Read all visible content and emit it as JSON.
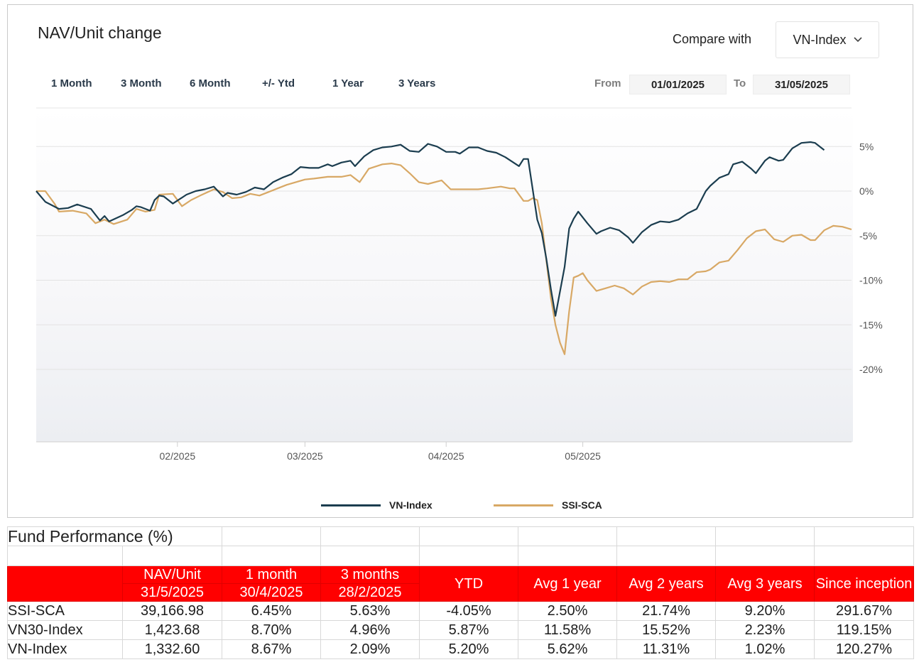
{
  "chart_header": {
    "title": "NAV/Unit change",
    "compare_label": "Compare with",
    "compare_value": "VN-Index",
    "periods": [
      "1 Month",
      "3 Month",
      "6 Month",
      "+/- Ytd",
      "1 Year",
      "3 Years"
    ],
    "from_label": "From",
    "from_value": "01/01/2025",
    "to_label": "To",
    "to_value": "31/05/2025",
    "chevron_icon": "chevron-down-icon"
  },
  "chart_data": {
    "type": "line",
    "x_start": "2025-01-01",
    "x_end": "2025-05-31",
    "x_tick_labels": [
      "02/2025",
      "03/2025",
      "04/2025",
      "05/2025"
    ],
    "y_tick_labels": [
      "5%",
      "0%",
      "-5%",
      "-10%",
      "-15%",
      "-20%"
    ],
    "y_ticks": [
      5,
      0,
      -5,
      -10,
      -15,
      -20
    ],
    "ylim": [
      -28,
      10
    ],
    "series": [
      {
        "name": "VN-Index",
        "color": "#1b3d4f",
        "points": [
          [
            "2025-01-01",
            0.0
          ],
          [
            "2025-01-03",
            -1.2
          ],
          [
            "2025-01-06",
            -2.0
          ],
          [
            "2025-01-08",
            -1.9
          ],
          [
            "2025-01-10",
            -1.5
          ],
          [
            "2025-01-13",
            -2.0
          ],
          [
            "2025-01-15",
            -3.3
          ],
          [
            "2025-01-16",
            -2.8
          ],
          [
            "2025-01-17",
            -3.4
          ],
          [
            "2025-01-20",
            -2.7
          ],
          [
            "2025-01-22",
            -2.1
          ],
          [
            "2025-01-23",
            -1.7
          ],
          [
            "2025-01-24",
            -1.8
          ],
          [
            "2025-01-26",
            -2.2
          ],
          [
            "2025-01-27",
            -1.0
          ],
          [
            "2025-01-28",
            -0.5
          ],
          [
            "2025-01-29",
            -0.6
          ],
          [
            "2025-01-31",
            -1.4
          ],
          [
            "2025-02-03",
            -0.4
          ],
          [
            "2025-02-05",
            0.0
          ],
          [
            "2025-02-07",
            0.2
          ],
          [
            "2025-02-09",
            0.5
          ],
          [
            "2025-02-11",
            -0.6
          ],
          [
            "2025-02-12",
            -0.2
          ],
          [
            "2025-02-14",
            -0.4
          ],
          [
            "2025-02-16",
            -0.1
          ],
          [
            "2025-02-18",
            0.4
          ],
          [
            "2025-02-20",
            0.2
          ],
          [
            "2025-02-22",
            1.0
          ],
          [
            "2025-02-24",
            1.5
          ],
          [
            "2025-02-26",
            1.9
          ],
          [
            "2025-02-28",
            2.7
          ],
          [
            "2025-03-02",
            2.6
          ],
          [
            "2025-03-04",
            2.6
          ],
          [
            "2025-03-06",
            3.0
          ],
          [
            "2025-03-07",
            2.8
          ],
          [
            "2025-03-09",
            3.2
          ],
          [
            "2025-03-11",
            3.4
          ],
          [
            "2025-03-12",
            2.8
          ],
          [
            "2025-03-14",
            3.9
          ],
          [
            "2025-03-16",
            4.6
          ],
          [
            "2025-03-18",
            4.9
          ],
          [
            "2025-03-20",
            5.0
          ],
          [
            "2025-03-22",
            5.2
          ],
          [
            "2025-03-24",
            4.5
          ],
          [
            "2025-03-26",
            4.4
          ],
          [
            "2025-03-28",
            5.3
          ],
          [
            "2025-03-30",
            5.0
          ],
          [
            "2025-04-01",
            4.4
          ],
          [
            "2025-04-03",
            4.4
          ],
          [
            "2025-04-04",
            4.2
          ],
          [
            "2025-04-06",
            4.9
          ],
          [
            "2025-04-08",
            4.9
          ],
          [
            "2025-04-10",
            4.5
          ],
          [
            "2025-04-12",
            4.3
          ],
          [
            "2025-04-14",
            3.8
          ],
          [
            "2025-04-17",
            2.8
          ],
          [
            "2025-04-18",
            3.6
          ],
          [
            "2025-04-19",
            3.6
          ],
          [
            "2025-04-21",
            -3.2
          ],
          [
            "2025-04-22",
            -4.7
          ],
          [
            "2025-04-23",
            -7.6
          ],
          [
            "2025-04-24",
            -11.0
          ],
          [
            "2025-04-25",
            -14.0
          ],
          [
            "2025-04-27",
            -8.5
          ],
          [
            "2025-04-28",
            -4.2
          ],
          [
            "2025-04-29",
            -3.1
          ],
          [
            "2025-04-30",
            -2.3
          ],
          [
            "2025-05-02",
            -3.6
          ],
          [
            "2025-05-04",
            -4.8
          ],
          [
            "2025-05-05",
            -4.5
          ],
          [
            "2025-05-07",
            -4.1
          ],
          [
            "2025-05-09",
            -4.4
          ],
          [
            "2025-05-11",
            -5.2
          ],
          [
            "2025-05-12",
            -5.8
          ],
          [
            "2025-05-14",
            -4.6
          ],
          [
            "2025-05-16",
            -3.8
          ],
          [
            "2025-05-18",
            -3.4
          ],
          [
            "2025-05-20",
            -3.5
          ],
          [
            "2025-05-22",
            -3.2
          ],
          [
            "2025-05-24",
            -2.5
          ],
          [
            "2025-05-26",
            -2.0
          ],
          [
            "2025-05-28",
            0.0
          ],
          [
            "2025-05-29",
            0.6
          ],
          [
            "2025-05-31",
            1.5
          ],
          [
            "2025-06-02",
            1.9
          ],
          [
            "2025-06-03",
            3.0
          ],
          [
            "2025-06-05",
            3.3
          ],
          [
            "2025-06-07",
            2.5
          ],
          [
            "2025-06-08",
            2.0
          ],
          [
            "2025-06-10",
            3.4
          ],
          [
            "2025-06-11",
            3.8
          ],
          [
            "2025-06-13",
            3.4
          ],
          [
            "2025-06-14",
            3.5
          ],
          [
            "2025-06-16",
            4.8
          ],
          [
            "2025-06-18",
            5.4
          ],
          [
            "2025-06-20",
            5.5
          ],
          [
            "2025-06-21",
            5.4
          ],
          [
            "2025-06-23",
            4.6
          ]
        ]
      },
      {
        "name": "SSI-SCA",
        "color": "#d8a865",
        "points": [
          [
            "2025-01-01",
            0.0
          ],
          [
            "2025-01-03",
            0.0
          ],
          [
            "2025-01-05",
            -1.4
          ],
          [
            "2025-01-06",
            -2.3
          ],
          [
            "2025-01-09",
            -2.2
          ],
          [
            "2025-01-12",
            -2.5
          ],
          [
            "2025-01-14",
            -3.6
          ],
          [
            "2025-01-16",
            -3.2
          ],
          [
            "2025-01-18",
            -3.7
          ],
          [
            "2025-01-21",
            -3.2
          ],
          [
            "2025-01-23",
            -2.0
          ],
          [
            "2025-01-25",
            -2.3
          ],
          [
            "2025-01-27",
            -2.1
          ],
          [
            "2025-01-28",
            -0.4
          ],
          [
            "2025-01-31",
            -0.3
          ],
          [
            "2025-02-02",
            -1.7
          ],
          [
            "2025-02-04",
            -1.0
          ],
          [
            "2025-02-06",
            -0.5
          ],
          [
            "2025-02-09",
            0.2
          ],
          [
            "2025-02-11",
            -0.1
          ],
          [
            "2025-02-13",
            -0.8
          ],
          [
            "2025-02-15",
            -0.7
          ],
          [
            "2025-02-17",
            -0.3
          ],
          [
            "2025-02-19",
            -0.5
          ],
          [
            "2025-02-21",
            -0.1
          ],
          [
            "2025-02-23",
            0.3
          ],
          [
            "2025-02-25",
            0.7
          ],
          [
            "2025-02-27",
            1.0
          ],
          [
            "2025-03-01",
            1.3
          ],
          [
            "2025-03-03",
            1.4
          ],
          [
            "2025-03-06",
            1.6
          ],
          [
            "2025-03-09",
            1.6
          ],
          [
            "2025-03-11",
            1.8
          ],
          [
            "2025-03-13",
            1.0
          ],
          [
            "2025-03-15",
            2.5
          ],
          [
            "2025-03-18",
            3.0
          ],
          [
            "2025-03-20",
            3.1
          ],
          [
            "2025-03-22",
            2.9
          ],
          [
            "2025-03-24",
            2.0
          ],
          [
            "2025-03-26",
            1.0
          ],
          [
            "2025-03-28",
            0.8
          ],
          [
            "2025-03-31",
            1.2
          ],
          [
            "2025-04-02",
            0.2
          ],
          [
            "2025-04-05",
            0.2
          ],
          [
            "2025-04-08",
            0.2
          ],
          [
            "2025-04-10",
            0.3
          ],
          [
            "2025-04-13",
            0.5
          ],
          [
            "2025-04-15",
            0.3
          ],
          [
            "2025-04-16",
            0.3
          ],
          [
            "2025-04-18",
            -1.1
          ],
          [
            "2025-04-19",
            -1.1
          ],
          [
            "2025-04-20",
            -0.8
          ],
          [
            "2025-04-21",
            -1.0
          ],
          [
            "2025-04-22",
            -3.6
          ],
          [
            "2025-04-23",
            -7.8
          ],
          [
            "2025-04-24",
            -12.0
          ],
          [
            "2025-04-25",
            -15.0
          ],
          [
            "2025-04-26",
            -17.0
          ],
          [
            "2025-04-27",
            -18.3
          ],
          [
            "2025-04-28",
            -13.5
          ],
          [
            "2025-04-29",
            -9.7
          ],
          [
            "2025-04-30",
            -9.5
          ],
          [
            "2025-05-01",
            -9.2
          ],
          [
            "2025-05-02",
            -10.0
          ],
          [
            "2025-05-04",
            -11.2
          ],
          [
            "2025-05-06",
            -10.9
          ],
          [
            "2025-05-08",
            -10.6
          ],
          [
            "2025-05-10",
            -10.9
          ],
          [
            "2025-05-12",
            -11.6
          ],
          [
            "2025-05-14",
            -10.7
          ],
          [
            "2025-05-16",
            -10.2
          ],
          [
            "2025-05-18",
            -10.1
          ],
          [
            "2025-05-20",
            -10.2
          ],
          [
            "2025-05-22",
            -9.9
          ],
          [
            "2025-05-24",
            -9.9
          ],
          [
            "2025-05-26",
            -9.1
          ],
          [
            "2025-05-28",
            -9.0
          ],
          [
            "2025-05-29",
            -8.8
          ],
          [
            "2025-05-31",
            -8.0
          ],
          [
            "2025-06-02",
            -7.8
          ],
          [
            "2025-06-04",
            -6.6
          ],
          [
            "2025-06-06",
            -5.3
          ],
          [
            "2025-06-08",
            -4.5
          ],
          [
            "2025-06-10",
            -4.3
          ],
          [
            "2025-06-12",
            -5.4
          ],
          [
            "2025-06-14",
            -5.7
          ],
          [
            "2025-06-16",
            -5.0
          ],
          [
            "2025-06-18",
            -4.9
          ],
          [
            "2025-06-20",
            -5.5
          ],
          [
            "2025-06-21",
            -5.5
          ],
          [
            "2025-06-23",
            -4.4
          ],
          [
            "2025-06-25",
            -3.9
          ],
          [
            "2025-06-27",
            -4.0
          ],
          [
            "2025-06-29",
            -4.3
          ]
        ]
      }
    ],
    "x_ticks": [
      "2025-02-01",
      "2025-03-01",
      "2025-04-01",
      "2025-05-01"
    ],
    "x_max": "2025-06-29",
    "legend": [
      "VN-Index",
      "SSI-SCA"
    ],
    "legend_position": "bottom",
    "grid": true
  },
  "table": {
    "title": "Fund Performance (%)",
    "header": {
      "nav_label": "NAV/Unit",
      "nav_date": "31/5/2025",
      "m1_label": "1 month",
      "m1_date": "30/4/2025",
      "m3_label": "3 months",
      "m3_date": "28/2/2025",
      "ytd": "YTD",
      "avg1": "Avg 1 year",
      "avg2": "Avg 2 years",
      "avg3": "Avg 3 years",
      "since": "Since inception"
    },
    "rows": [
      {
        "name": "SSI-SCA",
        "values": [
          "39,166.98",
          "6.45%",
          "5.63%",
          "-4.05%",
          "2.50%",
          "21.74%",
          "9.20%",
          "291.67%"
        ]
      },
      {
        "name": "VN30-Index",
        "values": [
          "1,423.68",
          "8.70%",
          "4.96%",
          "5.87%",
          "11.58%",
          "15.52%",
          "2.23%",
          "119.15%"
        ]
      },
      {
        "name": "VN-Index",
        "values": [
          "1,332.60",
          "8.67%",
          "2.09%",
          "5.20%",
          "5.62%",
          "11.31%",
          "1.02%",
          "120.27%"
        ]
      }
    ]
  }
}
